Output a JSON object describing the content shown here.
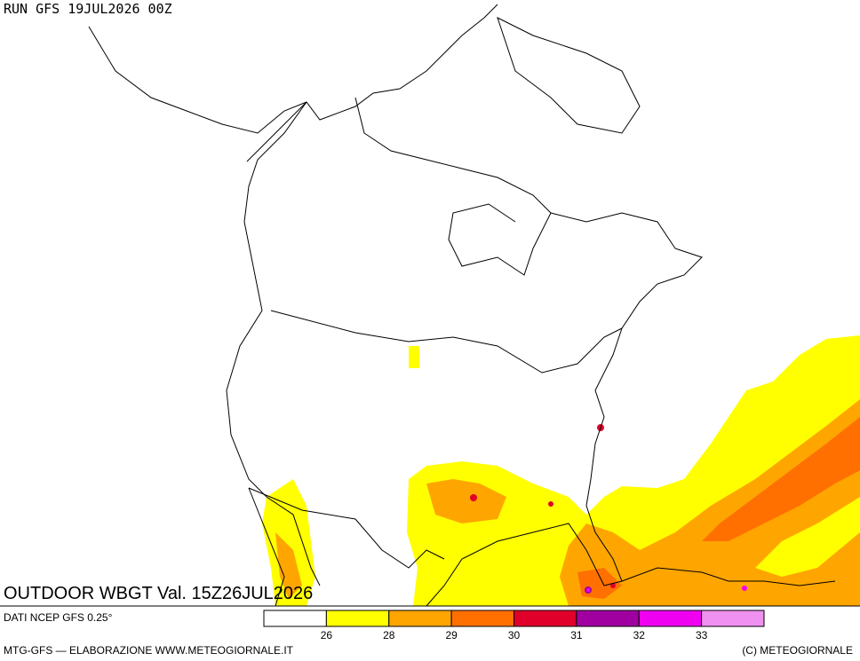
{
  "header": {
    "run": "RUN GFS 19JUL2026 00Z"
  },
  "map": {
    "title": "OUTDOOR WBGT Val. 15Z26JUL2026"
  },
  "legend": {
    "source": "DATI NCEP GFS 0.25°",
    "colors": [
      "#ffffff",
      "#ffff00",
      "#ffa500",
      "#ff7000",
      "#e0002a",
      "#a000a0",
      "#f000f0",
      "#f090f0"
    ],
    "ticks": [
      26,
      28,
      29,
      30,
      31,
      32,
      33
    ]
  },
  "footer": {
    "left": "MTG-GFS — ELABORAZIONE WWW.METEOGIORNALE.IT",
    "right": "(C) METEOGIORNALE"
  }
}
